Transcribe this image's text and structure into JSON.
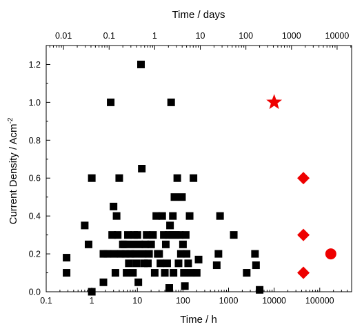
{
  "chart_data": {
    "type": "scatter",
    "title": "",
    "xlabel": "Time / h",
    "ylabel": "Current Density / Acm",
    "ylabel_superscript": "-2",
    "x2label": "Time / days",
    "x_scale": "log",
    "x2_scale": "log",
    "xlim": [
      0.1,
      500000
    ],
    "ylim": [
      0,
      1.3
    ],
    "grid": false,
    "legend": "none",
    "x_ticks": [
      0.1,
      1,
      10,
      100,
      1000,
      10000,
      100000
    ],
    "x_tick_labels": [
      "0.1",
      "1",
      "10",
      "100",
      "1000",
      "10000",
      "100000"
    ],
    "y_ticks": [
      0.0,
      0.2,
      0.4,
      0.6,
      0.8,
      1.0,
      1.2
    ],
    "y_tick_labels": [
      "0.0",
      "0.2",
      "0.4",
      "0.6",
      "0.8",
      "1.0",
      "1.2"
    ],
    "x2_ticks": [
      0.01,
      0.1,
      1,
      10,
      100,
      1000,
      10000
    ],
    "x2_tick_labels": [
      "0.01",
      "0.1",
      "1",
      "10",
      "100",
      "1000",
      "10000"
    ],
    "series": [
      {
        "marker": "square",
        "color": "#000000",
        "points": [
          [
            0.28,
            0.18
          ],
          [
            0.28,
            0.1
          ],
          [
            0.7,
            0.35
          ],
          [
            0.85,
            0.25
          ],
          [
            1.0,
            0.6
          ],
          [
            1.0,
            0.0
          ],
          [
            1.8,
            0.05
          ],
          [
            1.8,
            0.2
          ],
          [
            2.2,
            0.2
          ],
          [
            2.6,
            1.0
          ],
          [
            2.8,
            0.3
          ],
          [
            3.0,
            0.45
          ],
          [
            3.1,
            0.2
          ],
          [
            3.3,
            0.1
          ],
          [
            3.5,
            0.4
          ],
          [
            3.7,
            0.3
          ],
          [
            4.0,
            0.6
          ],
          [
            4.3,
            0.2
          ],
          [
            4.8,
            0.25
          ],
          [
            5.2,
            0.25
          ],
          [
            5.5,
            0.2
          ],
          [
            5.8,
            0.1
          ],
          [
            6.2,
            0.3
          ],
          [
            6.5,
            0.15
          ],
          [
            7.0,
            0.2
          ],
          [
            7.5,
            0.25
          ],
          [
            8.0,
            0.1
          ],
          [
            8.5,
            0.3
          ],
          [
            9.0,
            0.2
          ],
          [
            9.5,
            0.15
          ],
          [
            10.0,
            0.3
          ],
          [
            10.5,
            0.05
          ],
          [
            11.0,
            0.25
          ],
          [
            12.0,
            1.2
          ],
          [
            12.5,
            0.65
          ],
          [
            13.0,
            0.2
          ],
          [
            14.0,
            0.15
          ],
          [
            15.0,
            0.25
          ],
          [
            16.0,
            0.3
          ],
          [
            17.0,
            0.15
          ],
          [
            18.0,
            0.2
          ],
          [
            20.0,
            0.25
          ],
          [
            22.0,
            0.3
          ],
          [
            24.0,
            0.1
          ],
          [
            26.0,
            0.4
          ],
          [
            28.0,
            0.2
          ],
          [
            30.0,
            0.2
          ],
          [
            32.0,
            0.15
          ],
          [
            35.0,
            0.4
          ],
          [
            38.0,
            0.3
          ],
          [
            40.0,
            0.1
          ],
          [
            42.0,
            0.25
          ],
          [
            45.0,
            0.15
          ],
          [
            48.0,
            0.3
          ],
          [
            50.0,
            0.02
          ],
          [
            52.0,
            0.35
          ],
          [
            55.0,
            1.0
          ],
          [
            58.0,
            0.3
          ],
          [
            60.0,
            0.4
          ],
          [
            62.0,
            0.1
          ],
          [
            65.0,
            0.5
          ],
          [
            70.0,
            0.3
          ],
          [
            75.0,
            0.6
          ],
          [
            80.0,
            0.15
          ],
          [
            85.0,
            0.3
          ],
          [
            90.0,
            0.2
          ],
          [
            95.0,
            0.5
          ],
          [
            100.0,
            0.25
          ],
          [
            105.0,
            0.1
          ],
          [
            110.0,
            0.03
          ],
          [
            115.0,
            0.3
          ],
          [
            120.0,
            0.2
          ],
          [
            130.0,
            0.15
          ],
          [
            140.0,
            0.4
          ],
          [
            150.0,
            0.1
          ],
          [
            170.0,
            0.6
          ],
          [
            200.0,
            0.1
          ],
          [
            220.0,
            0.17
          ],
          [
            650.0,
            0.4
          ],
          [
            600.0,
            0.2
          ],
          [
            550.0,
            0.14
          ],
          [
            1300.0,
            0.3
          ],
          [
            2500.0,
            0.1
          ],
          [
            3800.0,
            0.2
          ],
          [
            4000.0,
            0.14
          ],
          [
            4800.0,
            0.01
          ]
        ]
      },
      {
        "marker": "star",
        "color": "#ee0000",
        "points": [
          [
            10000,
            1.0
          ]
        ]
      },
      {
        "marker": "diamond",
        "color": "#ee0000",
        "points": [
          [
            43800,
            0.6
          ],
          [
            43800,
            0.3
          ],
          [
            43800,
            0.1
          ]
        ]
      },
      {
        "marker": "circle",
        "color": "#ee0000",
        "points": [
          [
            175000,
            0.2
          ]
        ]
      }
    ]
  }
}
